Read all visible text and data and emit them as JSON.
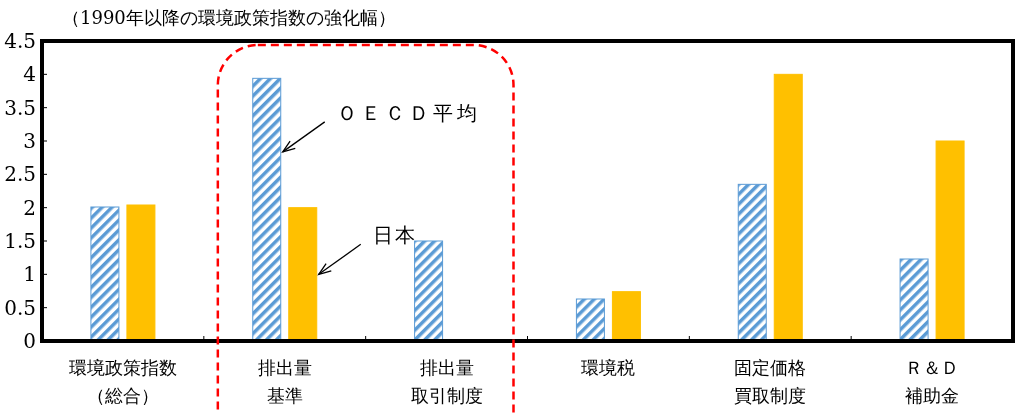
{
  "chart_data": {
    "type": "bar",
    "title": "（1990年以降の環境政策指数の強化幅）",
    "categories": [
      "環境政策指数（総合）",
      "排出量基準",
      "排出量取引制度",
      "環境税",
      "固定価格買取制度",
      "Ｒ＆Ｄ補助金"
    ],
    "series": [
      {
        "name": "ＯＥＣＤ平均",
        "color": "#5b9bd5",
        "values": [
          2.01,
          3.94,
          1.5,
          0.63,
          2.35,
          1.23
        ]
      },
      {
        "name": "日本",
        "color": "#ffc000",
        "values": [
          2.04,
          2.0,
          null,
          0.74,
          4.0,
          3.0
        ]
      }
    ],
    "ylim": [
      0,
      4.5
    ],
    "yticks": [
      0,
      0.5,
      1,
      1.5,
      2,
      2.5,
      3,
      3.5,
      4,
      4.5
    ],
    "grid": false
  }
}
